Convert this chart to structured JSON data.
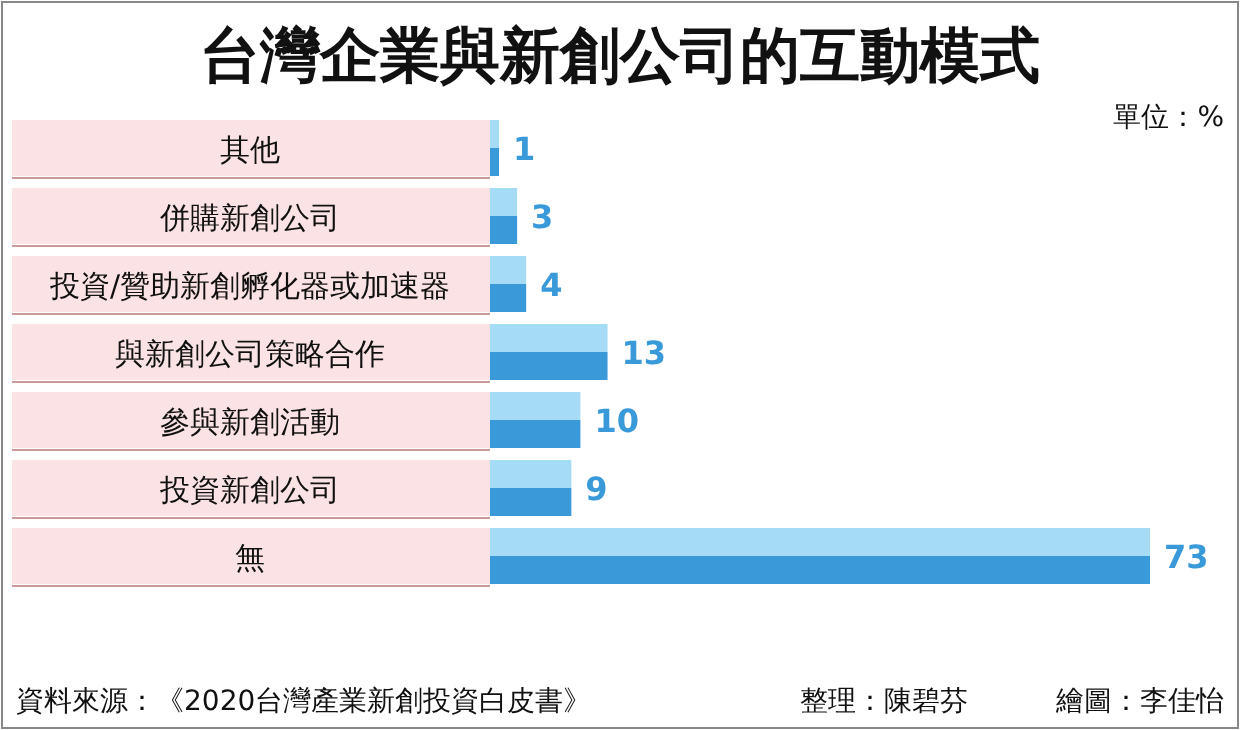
{
  "chart_data": {
    "type": "bar",
    "orientation": "horizontal",
    "title": "台灣企業與新創公司的互動模式",
    "subtitle": "單位：%",
    "categories": [
      "其他",
      "併購新創公司",
      "投資/贊助新創孵化器或加速器",
      "與新創公司策略合作",
      "參與新創活動",
      "投資新創公司",
      "無"
    ],
    "values": [
      1,
      3,
      4,
      13,
      10,
      9,
      73
    ],
    "color": "#3a9ad9",
    "data_labels": true,
    "annotations": [
      "資料來源：《2020台灣產業新創投資白皮書》",
      "整理：陳碧芬",
      "繪圖：李佳怡"
    ]
  }
}
